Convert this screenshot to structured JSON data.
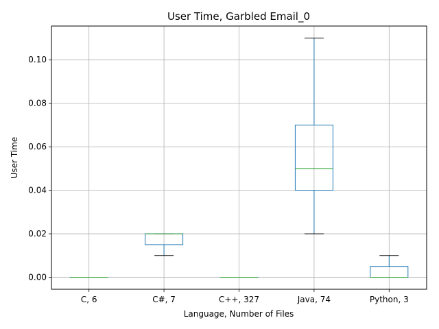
{
  "chart_data": {
    "type": "box",
    "title": "User Time, Garbled Email_0",
    "xlabel": "Language, Number of Files",
    "ylabel": "User Time",
    "ylim": [
      -0.0055,
      0.1155
    ],
    "y_ticks": [
      "0.00",
      "0.02",
      "0.04",
      "0.06",
      "0.08",
      "0.10"
    ],
    "grid": true,
    "categories": [
      "C, 6",
      "C#, 7",
      "C++, 327",
      "Java, 74",
      "Python, 3"
    ],
    "boxes": [
      {
        "label": "C, 6",
        "whisker_low": 0.0,
        "q1": 0.0,
        "median": 0.0,
        "q3": 0.0,
        "whisker_high": 0.0
      },
      {
        "label": "C#, 7",
        "whisker_low": 0.01,
        "q1": 0.015,
        "median": 0.02,
        "q3": 0.02,
        "whisker_high": 0.02
      },
      {
        "label": "C++, 327",
        "whisker_low": 0.0,
        "q1": 0.0,
        "median": 0.0,
        "q3": 0.0,
        "whisker_high": 0.0
      },
      {
        "label": "Java, 74",
        "whisker_low": 0.02,
        "q1": 0.04,
        "median": 0.05,
        "q3": 0.07,
        "whisker_high": 0.11
      },
      {
        "label": "Python, 3",
        "whisker_low": 0.0,
        "q1": 0.0,
        "median": 0.0,
        "q3": 0.005,
        "whisker_high": 0.01
      }
    ],
    "colors": {
      "box": "#1f77b4",
      "median": "#2ca02c",
      "cap": "#000000",
      "grid": "#b0b0b0"
    }
  }
}
